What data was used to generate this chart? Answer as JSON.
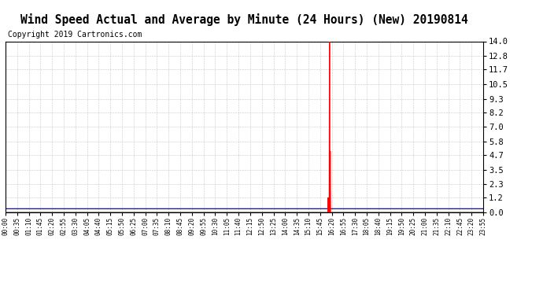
{
  "title": "Wind Speed Actual and Average by Minute (24 Hours) (New) 20190814",
  "copyright": "Copyright 2019 Cartronics.com",
  "yticks": [
    0.0,
    1.2,
    2.3,
    3.5,
    4.7,
    5.8,
    7.0,
    8.2,
    9.3,
    10.5,
    11.7,
    12.8,
    14.0
  ],
  "ylim": [
    0.0,
    14.0
  ],
  "total_minutes": 1440,
  "spike_minute_main": 976,
  "spike_value": 14.0,
  "spike2_minute": 972,
  "spike2_value": 1.2,
  "spike3_minute": 978,
  "spike3_value": 5.0,
  "avg_value": 0.3,
  "wind_color": "#FF0000",
  "avg_color": "#0000FF",
  "background_color": "#FFFFFF",
  "grid_color": "#BBBBBB",
  "title_fontsize": 10.5,
  "copyright_fontsize": 7,
  "legend_avg_bg": "#0000CC",
  "legend_wind_bg": "#FF0000",
  "legend_text_color": "#FFFFFF",
  "xtick_labels": [
    "00:00",
    "00:35",
    "01:10",
    "01:45",
    "02:20",
    "02:55",
    "03:30",
    "04:05",
    "04:40",
    "05:15",
    "05:50",
    "06:25",
    "07:00",
    "07:35",
    "08:10",
    "08:45",
    "09:20",
    "09:55",
    "10:30",
    "11:05",
    "11:40",
    "12:15",
    "12:50",
    "13:25",
    "14:00",
    "14:35",
    "15:10",
    "15:45",
    "16:20",
    "16:55",
    "17:30",
    "18:05",
    "18:40",
    "19:15",
    "19:50",
    "20:25",
    "21:00",
    "21:35",
    "22:10",
    "22:45",
    "23:20",
    "23:55"
  ]
}
